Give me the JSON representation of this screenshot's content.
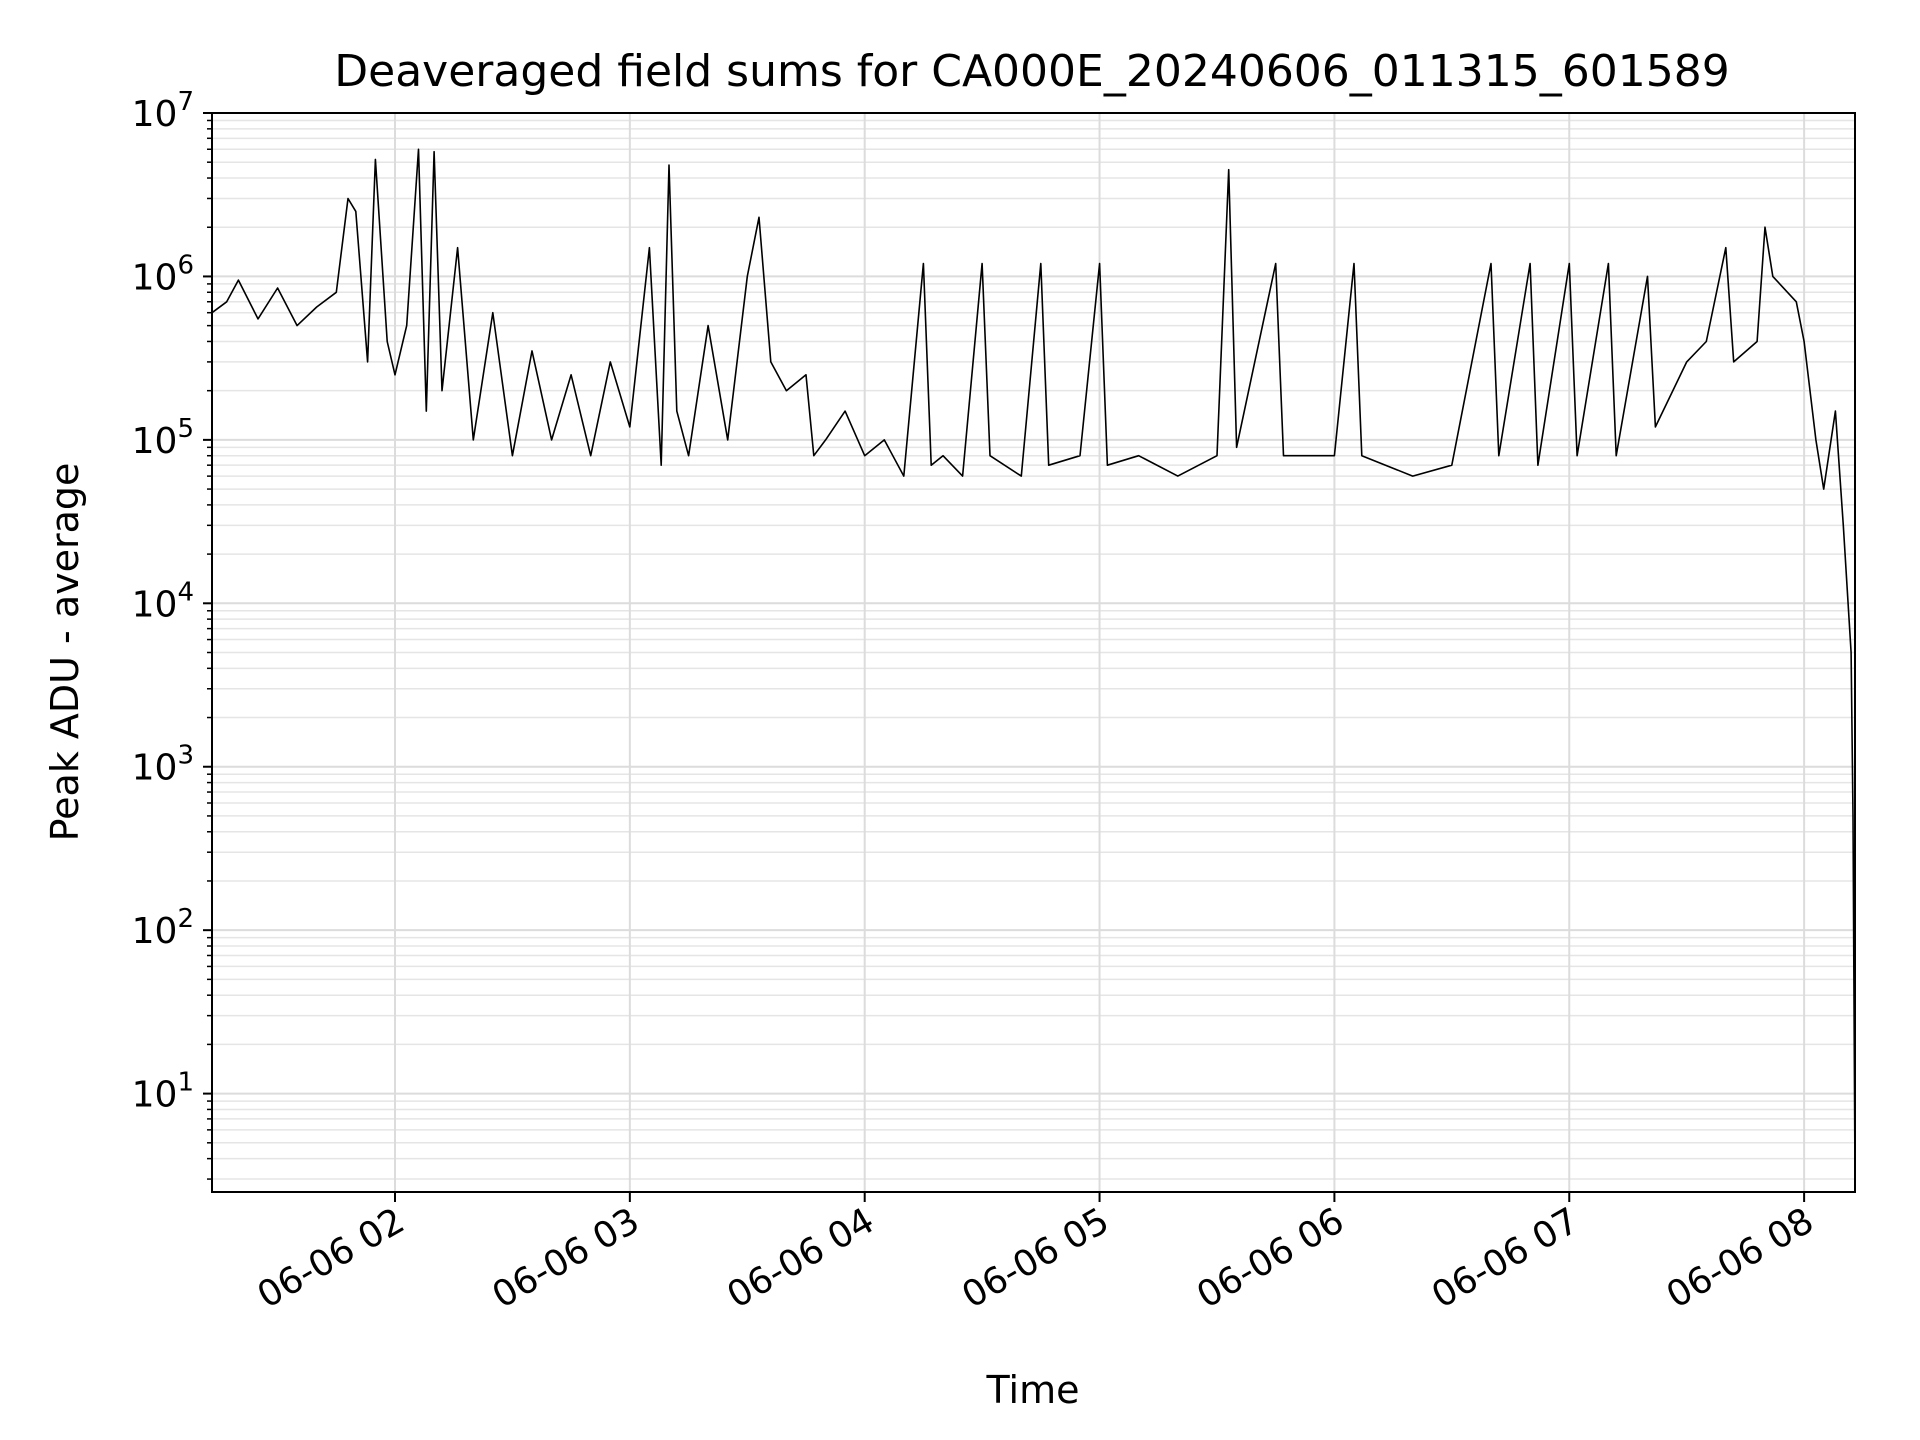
{
  "chart_data": {
    "type": "line",
    "title": "Deaveraged field sums for CA000E_20240606_011315_601589",
    "xlabel": "Time",
    "ylabel": "Peak ADU - average",
    "yscale": "log",
    "ylim": [
      2.5,
      10000000
    ],
    "xlim": [
      "2024-06-06 01:13:15",
      "2024-06-06 08:13:00"
    ],
    "x_tick_labels": [
      {
        "time": "2024-06-06 02:00",
        "label": "06-06 02"
      },
      {
        "time": "2024-06-06 03:00",
        "label": "06-06 03"
      },
      {
        "time": "2024-06-06 04:00",
        "label": "06-06 04"
      },
      {
        "time": "2024-06-06 05:00",
        "label": "06-06 05"
      },
      {
        "time": "2024-06-06 06:00",
        "label": "06-06 06"
      },
      {
        "time": "2024-06-06 07:00",
        "label": "06-06 07"
      },
      {
        "time": "2024-06-06 08:00",
        "label": "06-06 08"
      }
    ],
    "y_tick_labels": [
      {
        "value": 10,
        "base": "10",
        "exp": "1"
      },
      {
        "value": 100,
        "base": "10",
        "exp": "2"
      },
      {
        "value": 1000,
        "base": "10",
        "exp": "3"
      },
      {
        "value": 10000,
        "base": "10",
        "exp": "4"
      },
      {
        "value": 100000,
        "base": "10",
        "exp": "5"
      },
      {
        "value": 1000000,
        "base": "10",
        "exp": "6"
      },
      {
        "value": 10000000,
        "base": "10",
        "exp": "7"
      }
    ],
    "grid": true,
    "line_color": "#000000",
    "series": [
      {
        "points": [
          [
            "2024-06-06 01:13:15",
            600000
          ],
          [
            "2024-06-06 01:17:00",
            700000
          ],
          [
            "2024-06-06 01:20:00",
            950000
          ],
          [
            "2024-06-06 01:25:00",
            550000
          ],
          [
            "2024-06-06 01:30:00",
            850000
          ],
          [
            "2024-06-06 01:35:00",
            500000
          ],
          [
            "2024-06-06 01:40:00",
            650000
          ],
          [
            "2024-06-06 01:45:00",
            800000
          ],
          [
            "2024-06-06 01:48:00",
            3000000
          ],
          [
            "2024-06-06 01:50:00",
            2500000
          ],
          [
            "2024-06-06 01:53:00",
            300000
          ],
          [
            "2024-06-06 01:55:00",
            5200000
          ],
          [
            "2024-06-06 01:58:00",
            400000
          ],
          [
            "2024-06-06 02:00:00",
            250000
          ],
          [
            "2024-06-06 02:03:00",
            500000
          ],
          [
            "2024-06-06 02:06:00",
            6000000
          ],
          [
            "2024-06-06 02:08:00",
            150000
          ],
          [
            "2024-06-06 02:10:00",
            5800000
          ],
          [
            "2024-06-06 02:12:00",
            200000
          ],
          [
            "2024-06-06 02:16:00",
            1500000
          ],
          [
            "2024-06-06 02:20:00",
            100000
          ],
          [
            "2024-06-06 02:25:00",
            600000
          ],
          [
            "2024-06-06 02:30:00",
            80000
          ],
          [
            "2024-06-06 02:35:00",
            350000
          ],
          [
            "2024-06-06 02:40:00",
            100000
          ],
          [
            "2024-06-06 02:45:00",
            250000
          ],
          [
            "2024-06-06 02:50:00",
            80000
          ],
          [
            "2024-06-06 02:55:00",
            300000
          ],
          [
            "2024-06-06 03:00:00",
            120000
          ],
          [
            "2024-06-06 03:05:00",
            1500000
          ],
          [
            "2024-06-06 03:08:00",
            70000
          ],
          [
            "2024-06-06 03:10:00",
            4800000
          ],
          [
            "2024-06-06 03:12:00",
            150000
          ],
          [
            "2024-06-06 03:15:00",
            80000
          ],
          [
            "2024-06-06 03:20:00",
            500000
          ],
          [
            "2024-06-06 03:25:00",
            100000
          ],
          [
            "2024-06-06 03:30:00",
            1000000
          ],
          [
            "2024-06-06 03:33:00",
            2300000
          ],
          [
            "2024-06-06 03:36:00",
            300000
          ],
          [
            "2024-06-06 03:40:00",
            200000
          ],
          [
            "2024-06-06 03:45:00",
            250000
          ],
          [
            "2024-06-06 03:47:00",
            80000
          ],
          [
            "2024-06-06 03:50:00",
            100000
          ],
          [
            "2024-06-06 03:55:00",
            150000
          ],
          [
            "2024-06-06 04:00:00",
            80000
          ],
          [
            "2024-06-06 04:05:00",
            100000
          ],
          [
            "2024-06-06 04:10:00",
            60000
          ],
          [
            "2024-06-06 04:15:00",
            1200000
          ],
          [
            "2024-06-06 04:17:00",
            70000
          ],
          [
            "2024-06-06 04:20:00",
            80000
          ],
          [
            "2024-06-06 04:25:00",
            60000
          ],
          [
            "2024-06-06 04:30:00",
            1200000
          ],
          [
            "2024-06-06 04:32:00",
            80000
          ],
          [
            "2024-06-06 04:40:00",
            60000
          ],
          [
            "2024-06-06 04:45:00",
            1200000
          ],
          [
            "2024-06-06 04:47:00",
            70000
          ],
          [
            "2024-06-06 04:55:00",
            80000
          ],
          [
            "2024-06-06 05:00:00",
            1200000
          ],
          [
            "2024-06-06 05:02:00",
            70000
          ],
          [
            "2024-06-06 05:10:00",
            80000
          ],
          [
            "2024-06-06 05:20:00",
            60000
          ],
          [
            "2024-06-06 05:30:00",
            80000
          ],
          [
            "2024-06-06 05:33:00",
            4500000
          ],
          [
            "2024-06-06 05:35:00",
            90000
          ],
          [
            "2024-06-06 05:45:00",
            1200000
          ],
          [
            "2024-06-06 05:47:00",
            80000
          ],
          [
            "2024-06-06 06:00:00",
            80000
          ],
          [
            "2024-06-06 06:05:00",
            1200000
          ],
          [
            "2024-06-06 06:07:00",
            80000
          ],
          [
            "2024-06-06 06:20:00",
            60000
          ],
          [
            "2024-06-06 06:30:00",
            70000
          ],
          [
            "2024-06-06 06:40:00",
            1200000
          ],
          [
            "2024-06-06 06:42:00",
            80000
          ],
          [
            "2024-06-06 06:50:00",
            1200000
          ],
          [
            "2024-06-06 06:52:00",
            70000
          ],
          [
            "2024-06-06 07:00:00",
            1200000
          ],
          [
            "2024-06-06 07:02:00",
            80000
          ],
          [
            "2024-06-06 07:10:00",
            1200000
          ],
          [
            "2024-06-06 07:12:00",
            80000
          ],
          [
            "2024-06-06 07:20:00",
            1000000
          ],
          [
            "2024-06-06 07:22:00",
            120000
          ],
          [
            "2024-06-06 07:30:00",
            300000
          ],
          [
            "2024-06-06 07:35:00",
            400000
          ],
          [
            "2024-06-06 07:40:00",
            1500000
          ],
          [
            "2024-06-06 07:42:00",
            300000
          ],
          [
            "2024-06-06 07:48:00",
            400000
          ],
          [
            "2024-06-06 07:50:00",
            2000000
          ],
          [
            "2024-06-06 07:52:00",
            1000000
          ],
          [
            "2024-06-06 07:58:00",
            700000
          ],
          [
            "2024-06-06 08:00:00",
            400000
          ],
          [
            "2024-06-06 08:03:00",
            100000
          ],
          [
            "2024-06-06 08:05:00",
            50000
          ],
          [
            "2024-06-06 08:08:00",
            150000
          ],
          [
            "2024-06-06 08:10:00",
            30000
          ],
          [
            "2024-06-06 08:12:00",
            5000
          ],
          [
            "2024-06-06 08:12:30",
            500
          ],
          [
            "2024-06-06 08:13:00",
            3
          ]
        ]
      }
    ]
  }
}
